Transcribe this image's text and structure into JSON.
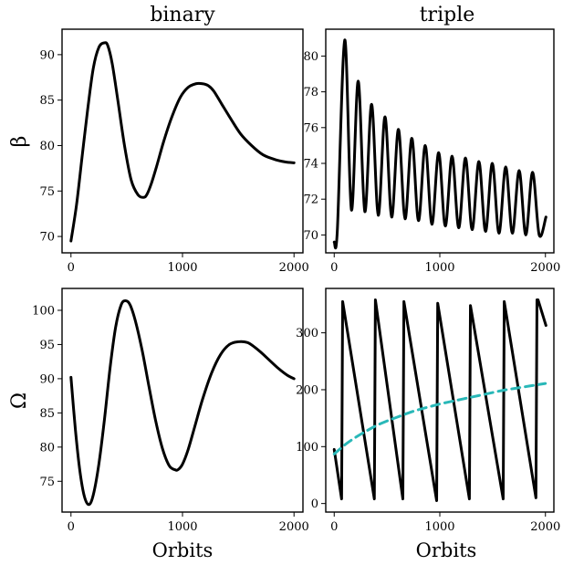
{
  "figure": {
    "col_titles": [
      "binary",
      "triple"
    ],
    "row_ylabels": [
      "β",
      "Ω"
    ],
    "xlabel": "Orbits"
  },
  "chart_data": [
    {
      "id": "beta-binary",
      "type": "line",
      "xlim": [
        -80,
        2080
      ],
      "ylim": [
        68.2,
        92.8
      ],
      "xticks": [
        0,
        1000,
        2000
      ],
      "yticks": [
        70,
        75,
        80,
        85,
        90
      ],
      "grid": false,
      "series": [
        {
          "color": "#000000",
          "dashed": false,
          "x": [
            0,
            50,
            100,
            150,
            200,
            250,
            300,
            330,
            370,
            420,
            480,
            540,
            600,
            650,
            680,
            720,
            770,
            830,
            900,
            980,
            1050,
            1120,
            1180,
            1230,
            1280,
            1350,
            1430,
            1520,
            1620,
            1720,
            1820,
            1920,
            2000
          ],
          "y": [
            69.5,
            73.5,
            78.8,
            84.0,
            88.5,
            90.8,
            91.3,
            91.0,
            89.0,
            85.0,
            80.0,
            76.2,
            74.6,
            74.3,
            74.6,
            75.8,
            77.8,
            80.4,
            83.0,
            85.3,
            86.4,
            86.8,
            86.8,
            86.6,
            86.0,
            84.6,
            83.0,
            81.3,
            80.0,
            79.0,
            78.5,
            78.2,
            78.1
          ]
        }
      ]
    },
    {
      "id": "beta-triple",
      "type": "line",
      "xlim": [
        -80,
        2080
      ],
      "ylim": [
        69.0,
        81.5
      ],
      "xticks": [
        0,
        1000,
        2000
      ],
      "yticks": [
        70,
        72,
        74,
        76,
        78,
        80
      ],
      "grid": false,
      "osc": {
        "period": 127,
        "first_peak_x": 100,
        "peaks": [
          80.9,
          78.6,
          77.3,
          76.6,
          75.9,
          75.4,
          75.0,
          74.6,
          74.4,
          74.3,
          74.1,
          74.0,
          73.8,
          73.6,
          73.5
        ],
        "troughs": [
          71.4,
          71.3,
          71.1,
          71.0,
          70.9,
          70.8,
          70.6,
          70.5,
          70.4,
          70.3,
          70.2,
          70.1,
          70.1,
          70.0,
          70.0
        ]
      },
      "series": [
        {
          "color": "#000000",
          "dashed": false,
          "x": [
            0,
            30,
            100,
            163,
            227,
            290,
            354,
            417,
            481,
            544,
            608,
            671,
            735,
            798,
            862,
            925,
            989,
            1052,
            1116,
            1179,
            1243,
            1306,
            1370,
            1433,
            1497,
            1560,
            1624,
            1687,
            1751,
            1814,
            1878,
            1941,
            2005
          ],
          "y": [
            69.6,
            70.3,
            80.9,
            71.4,
            78.6,
            71.3,
            77.3,
            71.1,
            76.6,
            71.0,
            75.9,
            70.9,
            75.4,
            70.8,
            75.0,
            70.6,
            74.6,
            70.5,
            74.4,
            70.4,
            74.3,
            70.3,
            74.1,
            70.2,
            74.0,
            70.1,
            73.8,
            70.1,
            73.6,
            70.0,
            73.5,
            70.0,
            71.0
          ]
        }
      ]
    },
    {
      "id": "omega-binary",
      "type": "line",
      "xlim": [
        -80,
        2080
      ],
      "ylim": [
        70.5,
        103.2
      ],
      "xticks": [
        0,
        1000,
        2000
      ],
      "yticks": [
        75,
        80,
        85,
        90,
        95,
        100
      ],
      "grid": false,
      "series": [
        {
          "color": "#000000",
          "dashed": false,
          "x": [
            0,
            40,
            80,
            120,
            160,
            200,
            250,
            300,
            350,
            400,
            450,
            490,
            530,
            580,
            640,
            700,
            760,
            820,
            880,
            930,
            960,
            1000,
            1050,
            1110,
            1180,
            1260,
            1340,
            1420,
            1500,
            1580,
            1640,
            1700,
            1780,
            1860,
            1940,
            2000
          ],
          "y": [
            90.2,
            82.5,
            76.5,
            72.8,
            71.6,
            73.0,
            77.5,
            84.0,
            91.5,
            97.5,
            100.8,
            101.4,
            100.8,
            98.3,
            94.0,
            88.8,
            83.8,
            79.8,
            77.3,
            76.7,
            76.7,
            77.5,
            79.6,
            83.0,
            87.0,
            90.8,
            93.5,
            95.0,
            95.4,
            95.3,
            94.7,
            93.9,
            92.7,
            91.5,
            90.5,
            90.0
          ]
        }
      ]
    },
    {
      "id": "omega-triple",
      "type": "line",
      "xlim": [
        -80,
        2080
      ],
      "ylim": [
        -15,
        378
      ],
      "xticks": [
        0,
        1000,
        2000
      ],
      "yticks": [
        0,
        100,
        200,
        300
      ],
      "grid": false,
      "series": [
        {
          "color": "#000000",
          "dashed": false,
          "x": [
            0,
            70,
            80,
            380,
            390,
            650,
            660,
            970,
            980,
            1280,
            1290,
            1600,
            1610,
            1910,
            1920,
            1930,
            2005
          ],
          "y": [
            95,
            8,
            355,
            8,
            358,
            8,
            355,
            5,
            352,
            8,
            348,
            8,
            355,
            10,
            358,
            358,
            313
          ]
        },
        {
          "color": "#29b8b8",
          "dashed": true,
          "x": [
            0,
            100,
            200,
            300,
            400,
            500,
            600,
            700,
            800,
            900,
            1000,
            1100,
            1200,
            1300,
            1400,
            1500,
            1600,
            1700,
            1800,
            1900,
            2000
          ],
          "y": [
            87,
            103,
            116,
            127,
            137,
            145,
            152,
            159,
            165,
            170,
            175,
            179,
            183,
            187,
            191,
            195,
            199,
            202,
            205,
            208,
            211
          ]
        }
      ]
    }
  ]
}
